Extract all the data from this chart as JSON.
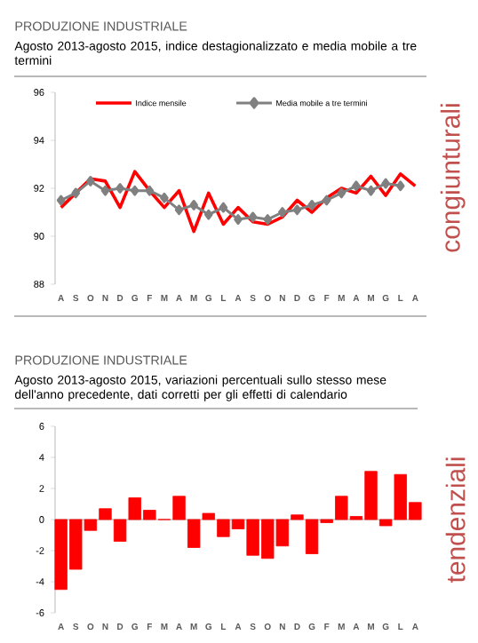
{
  "chart_data": [
    {
      "type": "line",
      "title": "PRODUZIONE INDUSTRIALE",
      "subtitle": "Agosto 2013-agosto 2015, indice destagionalizzato e media mobile a tre termini",
      "categories": [
        "A",
        "S",
        "O",
        "N",
        "D",
        "G",
        "F",
        "M",
        "A",
        "M",
        "G",
        "L",
        "A",
        "S",
        "O",
        "N",
        "D",
        "G",
        "F",
        "M",
        "A",
        "M",
        "G",
        "L",
        "A"
      ],
      "series": [
        {
          "name": "Indice mensile",
          "color": "#ff0000",
          "values": [
            91.2,
            91.8,
            92.4,
            92.3,
            91.2,
            92.7,
            91.9,
            91.2,
            91.9,
            90.2,
            91.8,
            90.5,
            91.2,
            90.6,
            90.5,
            90.8,
            91.5,
            91.0,
            91.6,
            92.0,
            91.8,
            92.5,
            91.7,
            92.6,
            92.1
          ]
        },
        {
          "name": "Media mobile a tre termini",
          "color": "#808080",
          "marker": "diamond",
          "values": [
            91.5,
            91.8,
            92.3,
            91.9,
            92.0,
            91.9,
            91.9,
            91.6,
            91.1,
            91.3,
            90.9,
            91.2,
            90.7,
            90.8,
            90.7,
            91.0,
            91.1,
            91.3,
            91.5,
            91.8,
            92.1,
            91.9,
            92.2,
            92.1,
            null
          ]
        }
      ],
      "ylim": [
        88,
        96
      ],
      "yticks": [
        88,
        90,
        92,
        94,
        96
      ],
      "legend": "top",
      "annotations": [
        "congiunturali"
      ]
    },
    {
      "type": "bar",
      "title": "PRODUZIONE INDUSTRIALE",
      "subtitle": "Agosto 2013-agosto 2015, variazioni percentuali sullo stesso mese dell'anno precedente, dati corretti per gli effetti di calendario",
      "categories": [
        "A",
        "S",
        "O",
        "N",
        "D",
        "G",
        "F",
        "M",
        "A",
        "M",
        "G",
        "L",
        "A",
        "S",
        "O",
        "N",
        "D",
        "G",
        "F",
        "M",
        "A",
        "M",
        "G",
        "L",
        "A"
      ],
      "values": [
        -4.5,
        -3.2,
        -0.7,
        0.7,
        -1.4,
        1.4,
        0.6,
        0,
        1.5,
        -1.8,
        0.4,
        -1.1,
        -0.6,
        -2.3,
        -2.5,
        -1.7,
        0.3,
        -2.2,
        -0.2,
        1.5,
        0.2,
        3.1,
        -0.4,
        2.9,
        1.1
      ],
      "color": "#ff0000",
      "ylim": [
        -6,
        6
      ],
      "yticks": [
        -6,
        -4,
        -2,
        0,
        2,
        4,
        6
      ],
      "annotations": [
        "tendenziali"
      ]
    }
  ]
}
